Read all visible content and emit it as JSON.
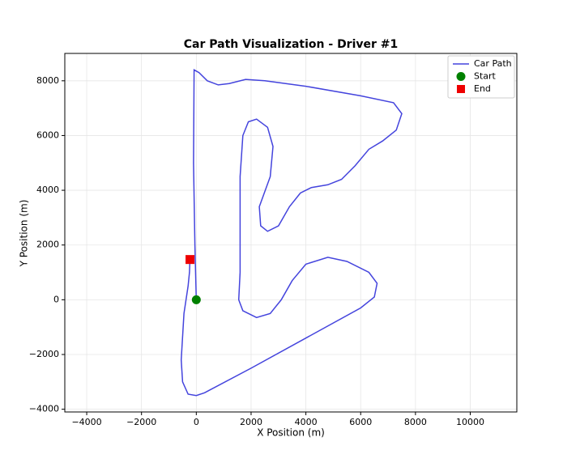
{
  "chart_data": {
    "type": "line",
    "title": "Car Path Visualization - Driver #1",
    "x_label": "X Position (m)",
    "y_label": "Y Position (m)",
    "series": [
      {
        "name": "Car Path",
        "type": "line",
        "color": "#4444dd",
        "x": [
          0,
          -50,
          -100,
          -80,
          100,
          400,
          800,
          1200,
          1800,
          2500,
          4000,
          6000,
          7200,
          7500,
          7300,
          6800,
          6300,
          5800,
          5300,
          4800,
          4200,
          3800,
          3400,
          3000,
          2600,
          2350,
          2300,
          2700,
          2800,
          2600,
          2200,
          1900,
          1700,
          1600,
          1600,
          1600,
          1550,
          1700,
          2200,
          2700,
          3100,
          3500,
          4000,
          4800,
          5500,
          6300,
          6600,
          6500,
          6000,
          4000,
          2000,
          300,
          0,
          -300,
          -500,
          -550,
          -450,
          -300,
          -250,
          -230
        ],
        "values": [
          0,
          2000,
          5000,
          8400,
          8300,
          8000,
          7850,
          7900,
          8050,
          8000,
          7800,
          7450,
          7200,
          6800,
          6200,
          5800,
          5500,
          4900,
          4400,
          4200,
          4100,
          3900,
          3400,
          2700,
          2500,
          2700,
          3400,
          4500,
          5600,
          6300,
          6600,
          6500,
          6000,
          4500,
          2500,
          1000,
          0,
          -400,
          -650,
          -500,
          0,
          700,
          1300,
          1550,
          1400,
          1000,
          600,
          100,
          -300,
          -1400,
          -2500,
          -3400,
          -3500,
          -3450,
          -3000,
          -2200,
          -500,
          500,
          1000,
          1470
        ]
      },
      {
        "name": "Start",
        "type": "scatter",
        "marker": "circle",
        "color": "#008000",
        "x": [
          0
        ],
        "values": [
          0
        ]
      },
      {
        "name": "End",
        "type": "scatter",
        "marker": "square",
        "color": "#ee0000",
        "x": [
          -230
        ],
        "values": [
          1470
        ]
      }
    ],
    "xlim": [
      -4800,
      11700
    ],
    "ylim": [
      -4100,
      9000
    ],
    "xticks": [
      {
        "value": -4000,
        "label": "−4000"
      },
      {
        "value": -2000,
        "label": "−2000"
      },
      0,
      2000,
      4000,
      6000,
      8000,
      10000
    ],
    "yticks": [
      {
        "value": -4000,
        "label": "−4000"
      },
      {
        "value": -2000,
        "label": "−2000"
      },
      0,
      2000,
      4000,
      6000,
      8000
    ],
    "grid": true,
    "legend": "upper-right"
  }
}
